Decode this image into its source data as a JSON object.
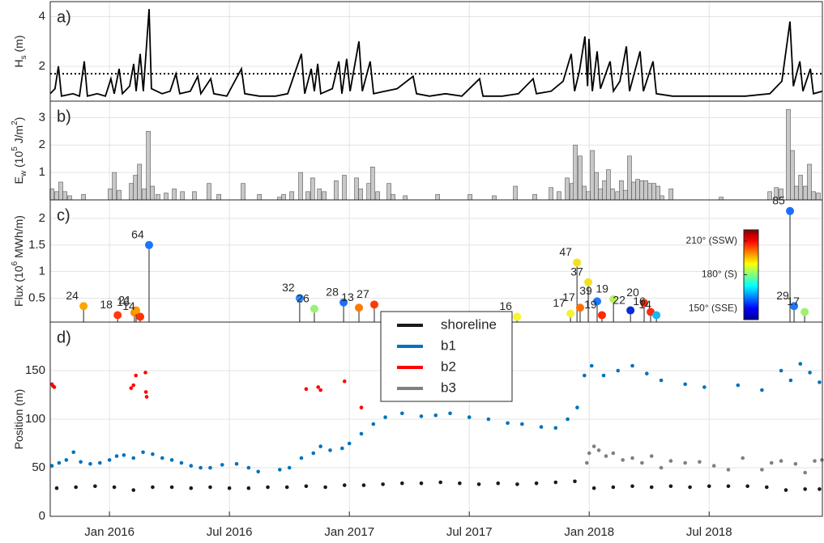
{
  "chart_data": [
    {
      "type": "line",
      "label": "a)",
      "ylabel": [
        "H",
        {
          "sub": "s"
        },
        " (m)"
      ],
      "color": "#000000",
      "ylim": [
        0.6,
        4.6
      ],
      "yticks": [
        2,
        4
      ],
      "grid": true,
      "threshold": 1.7,
      "x": [
        2015.753,
        2015.773,
        2015.787,
        2015.8,
        2015.848,
        2015.875,
        2015.895,
        2015.908,
        2015.949,
        2015.983,
        2016.006,
        2016.02,
        2016.04,
        2016.054,
        2016.084,
        2016.101,
        2016.111,
        2016.128,
        2016.141,
        2016.165,
        2016.175,
        2016.219,
        2016.253,
        2016.277,
        2016.293,
        2016.337,
        2016.368,
        2016.381,
        2016.422,
        2016.435,
        2016.489,
        2016.55,
        2016.564,
        2016.625,
        2016.692,
        2016.743,
        2016.8,
        2016.814,
        2016.841,
        2016.854,
        2016.868,
        2016.881,
        2016.929,
        2016.956,
        2016.969,
        2016.989,
        2017.003,
        2017.04,
        2017.054,
        2017.087,
        2017.101,
        2017.148,
        2017.199,
        2017.266,
        2017.28,
        2017.334,
        2017.401,
        2017.469,
        2017.543,
        2017.557,
        2017.638,
        2017.705,
        2017.766,
        2017.78,
        2017.841,
        2017.891,
        2017.925,
        2017.939,
        2017.959,
        2017.982,
        2017.993,
        2017.999,
        2018.013,
        2018.033,
        2018.047,
        2018.087,
        2018.101,
        2018.128,
        2018.155,
        2018.168,
        2018.212,
        2018.226,
        2018.266,
        2018.28,
        2018.347,
        2018.449,
        2018.55,
        2018.651,
        2018.753,
        2018.803,
        2018.837,
        2018.851,
        2018.878,
        2018.891,
        2018.922,
        2018.935,
        2018.972
      ],
      "values": [
        0.9,
        1.1,
        2.0,
        0.8,
        0.9,
        0.8,
        2.2,
        0.8,
        0.9,
        0.8,
        1.5,
        0.9,
        1.9,
        0.9,
        1.2,
        2.1,
        1.0,
        2.5,
        1.0,
        4.3,
        1.1,
        0.9,
        1.0,
        1.7,
        0.9,
        1.0,
        1.6,
        0.9,
        1.5,
        0.9,
        0.8,
        1.9,
        0.9,
        0.8,
        0.8,
        0.9,
        2.5,
        0.9,
        1.9,
        1.0,
        2.1,
        0.9,
        1.1,
        2.2,
        0.9,
        2.3,
        1.0,
        3.0,
        1.0,
        2.2,
        0.9,
        1.0,
        1.1,
        1.6,
        0.9,
        0.8,
        0.9,
        0.8,
        1.5,
        0.8,
        0.8,
        0.9,
        1.5,
        0.9,
        1.0,
        1.4,
        2.5,
        1.0,
        1.8,
        3.2,
        1.2,
        3.1,
        1.0,
        2.6,
        1.1,
        2.2,
        1.0,
        1.4,
        2.8,
        1.0,
        2.6,
        1.0,
        2.2,
        0.9,
        0.8,
        0.8,
        0.8,
        0.8,
        0.9,
        1.4,
        3.8,
        1.2,
        2.2,
        1.0,
        1.9,
        0.9,
        1.0
      ]
    },
    {
      "type": "bar",
      "label": "b)",
      "ylabel": [
        "E",
        {
          "sub": "w"
        },
        " (10",
        {
          "sup": "5"
        },
        " J/m",
        {
          "sup": "2"
        },
        ")"
      ],
      "color": "#c8c8c8",
      "ylim": [
        0,
        3.6
      ],
      "yticks": [
        1,
        2,
        3
      ],
      "grid": true,
      "x": [
        2015.76,
        2015.78,
        2015.797,
        2015.814,
        2015.834,
        2015.892,
        2016.003,
        2016.02,
        2016.04,
        2016.091,
        2016.108,
        2016.125,
        2016.145,
        2016.162,
        2016.179,
        2016.202,
        2016.236,
        2016.27,
        2016.304,
        2016.354,
        2016.415,
        2016.456,
        2016.557,
        2016.625,
        2016.709,
        2016.726,
        2016.76,
        2016.797,
        2016.827,
        2016.847,
        2016.875,
        2016.895,
        2016.945,
        2016.979,
        2017.03,
        2017.047,
        2017.081,
        2017.097,
        2017.118,
        2017.165,
        2017.182,
        2017.233,
        2017.368,
        2017.503,
        2017.604,
        2017.692,
        2017.773,
        2017.841,
        2017.874,
        2017.908,
        2017.928,
        2017.942,
        2017.962,
        2017.979,
        2017.996,
        2018.013,
        2018.03,
        2018.047,
        2018.064,
        2018.08,
        2018.097,
        2018.118,
        2018.134,
        2018.151,
        2018.168,
        2018.185,
        2018.202,
        2018.219,
        2018.236,
        2018.253,
        2018.27,
        2018.287,
        2018.303,
        2018.341,
        2018.55,
        2018.753,
        2018.78,
        2018.8,
        2018.83,
        2018.847,
        2018.864,
        2018.881,
        2018.901,
        2018.918,
        2018.935,
        2018.955
      ],
      "values": [
        0.4,
        0.3,
        0.65,
        0.3,
        0.15,
        0.2,
        0.4,
        1.0,
        0.35,
        0.6,
        0.9,
        1.3,
        0.4,
        2.5,
        0.5,
        0.2,
        0.25,
        0.4,
        0.3,
        0.3,
        0.6,
        0.2,
        0.6,
        0.2,
        0.1,
        0.2,
        0.3,
        1.0,
        0.3,
        0.8,
        0.4,
        0.3,
        0.7,
        0.9,
        0.8,
        0.4,
        0.6,
        1.2,
        0.3,
        0.6,
        0.2,
        0.15,
        0.2,
        0.2,
        0.15,
        0.5,
        0.2,
        0.45,
        0.3,
        0.8,
        0.6,
        2.0,
        1.6,
        0.5,
        0.3,
        1.8,
        1.0,
        0.4,
        0.7,
        1.1,
        0.4,
        0.3,
        0.7,
        0.35,
        1.6,
        0.65,
        0.75,
        0.7,
        0.7,
        0.6,
        0.6,
        0.5,
        0.15,
        0.4,
        0.1,
        0.3,
        0.45,
        0.4,
        3.3,
        1.8,
        0.5,
        0.9,
        0.5,
        1.3,
        0.3,
        0.25
      ]
    },
    {
      "type": "stem",
      "label": "c)",
      "ylabel": [
        "Flux (10",
        {
          "sup": "6"
        },
        " MWh/m)"
      ],
      "ylim": [
        0.05,
        2.35
      ],
      "yticks": [
        0.5,
        1,
        1.5,
        2
      ],
      "grid": true,
      "x": [
        2015.892,
        2016.034,
        2016.104,
        2016.111,
        2016.128,
        2016.165,
        2016.793,
        2016.854,
        2016.976,
        2017.04,
        2017.104,
        2017.699,
        2017.922,
        2017.949,
        2017.962,
        2017.996,
        2018.033,
        2018.053,
        2018.101,
        2018.172,
        2018.229,
        2018.256,
        2018.28,
        2018.837,
        2018.854,
        2018.898
      ],
      "values": [
        0.35,
        0.18,
        0.23,
        0.27,
        0.15,
        1.5,
        0.5,
        0.3,
        0.42,
        0.32,
        0.38,
        0.15,
        0.21,
        1.17,
        0.32,
        0.8,
        0.44,
        0.18,
        0.48,
        0.27,
        0.41,
        0.24,
        0.18,
        2.14,
        0.35,
        0.24
      ],
      "labels": [
        24,
        18,
        16,
        21,
        14,
        64,
        32,
        26,
        28,
        13,
        27,
        16,
        17,
        47,
        17,
        37,
        39,
        19,
        19,
        22,
        20,
        16,
        14,
        85,
        29,
        17
      ],
      "colors": [
        "#ffa500",
        "#ff3a10",
        "#ff8c00",
        "#ff9a00",
        "#ff3300",
        "#1a75ff",
        "#2b8cff",
        "#9af07a",
        "#1a6fff",
        "#ff7a00",
        "#ff3a00",
        "#f5f52a",
        "#f2f23a",
        "#f5e020",
        "#ff7000",
        "#f5e020",
        "#1a7aff",
        "#ff2a00",
        "#b8f060",
        "#0a2cd8",
        "#ff2a00",
        "#ff2a10",
        "#19b8f0",
        "#1a6fff",
        "#1a7aff",
        "#a0f070"
      ],
      "colorbar": {
        "lim": [
          140,
          220
        ],
        "ticks": [
          {
            "value": 210,
            "label": "210° (SSW)"
          },
          {
            "value": 180,
            "label": "180° (S)"
          },
          {
            "value": 150,
            "label": "150° (SSE)"
          }
        ]
      }
    },
    {
      "type": "scatter",
      "label": "d)",
      "ylabel": [
        "Position (m)"
      ],
      "ylim": [
        0,
        200
      ],
      "yticks": [
        0,
        50,
        100,
        150
      ],
      "grid": true,
      "legend": "upper center",
      "xlim": [
        2015.753,
        2018.972
      ],
      "xticks": [
        {
          "value": 2016.0,
          "label": "Jan 2016"
        },
        {
          "value": 2016.5,
          "label": "Jul 2016"
        },
        {
          "value": 2017.0,
          "label": "Jan 2017"
        },
        {
          "value": 2017.5,
          "label": "Jul 2017"
        },
        {
          "value": 2018.0,
          "label": "Jan 2018"
        },
        {
          "value": 2018.5,
          "label": "Jul 2018"
        }
      ],
      "series": [
        {
          "name": "shoreline",
          "color": "#1a1a1a",
          "x": [
            2015.78,
            2015.86,
            2015.94,
            2016.02,
            2016.1,
            2016.18,
            2016.26,
            2016.34,
            2016.42,
            2016.5,
            2016.58,
            2016.66,
            2016.74,
            2016.82,
            2016.9,
            2016.98,
            2017.06,
            2017.14,
            2017.22,
            2017.3,
            2017.38,
            2017.46,
            2017.54,
            2017.62,
            2017.7,
            2017.78,
            2017.86,
            2017.94,
            2018.02,
            2018.1,
            2018.18,
            2018.26,
            2018.34,
            2018.42,
            2018.5,
            2018.58,
            2018.66,
            2018.74,
            2018.82,
            2018.9,
            2018.96
          ],
          "values": [
            29,
            30,
            31,
            30,
            27,
            30,
            30,
            29,
            30,
            29,
            29,
            30,
            30,
            31,
            30,
            32,
            32,
            33,
            34,
            34,
            35,
            34,
            33,
            34,
            33,
            34,
            35,
            36,
            29,
            30,
            31,
            30,
            31,
            30,
            31,
            31,
            31,
            30,
            27,
            28,
            28
          ]
        },
        {
          "name": "b1",
          "color": "#0072bd",
          "x": [
            2015.76,
            2015.79,
            2015.82,
            2015.85,
            2015.88,
            2015.92,
            2015.96,
            2016.0,
            2016.03,
            2016.06,
            2016.1,
            2016.14,
            2016.18,
            2016.22,
            2016.26,
            2016.3,
            2016.34,
            2016.38,
            2016.42,
            2016.47,
            2016.53,
            2016.58,
            2016.62,
            2016.71,
            2016.75,
            2016.8,
            2016.85,
            2016.88,
            2016.92,
            2016.97,
            2017.0,
            2017.05,
            2017.1,
            2017.15,
            2017.22,
            2017.3,
            2017.36,
            2017.42,
            2017.5,
            2017.58,
            2017.66,
            2017.72,
            2017.8,
            2017.86,
            2017.91,
            2017.95,
            2017.98,
            2018.01,
            2018.06,
            2018.12,
            2018.18,
            2018.24,
            2018.3,
            2018.4,
            2018.48,
            2018.62,
            2018.72,
            2018.8,
            2018.84,
            2018.88,
            2018.92,
            2018.96
          ],
          "values": [
            52,
            55,
            58,
            66,
            56,
            54,
            55,
            58,
            62,
            63,
            60,
            66,
            64,
            60,
            58,
            55,
            52,
            50,
            50,
            53,
            54,
            50,
            46,
            48,
            50,
            60,
            65,
            72,
            68,
            70,
            75,
            85,
            95,
            102,
            106,
            103,
            104,
            106,
            102,
            100,
            96,
            95,
            92,
            91,
            100,
            112,
            145,
            155,
            145,
            150,
            155,
            147,
            140,
            136,
            133,
            135,
            130,
            150,
            140,
            157,
            148,
            138
          ]
        },
        {
          "name": "b2",
          "color": "#ff0000",
          "x": [
            2015.76,
            2015.765,
            2015.77,
            2016.09,
            2016.1,
            2016.11,
            2016.15,
            2016.152,
            2016.155,
            2016.82,
            2016.87,
            2016.88,
            2016.98,
            2017.05
          ],
          "values": [
            136,
            134,
            133,
            132,
            135,
            145,
            148,
            128,
            123,
            131,
            133,
            130,
            139,
            112
          ]
        },
        {
          "name": "b3",
          "color": "#808080",
          "x": [
            2017.99,
            2018.0,
            2018.02,
            2018.04,
            2018.07,
            2018.1,
            2018.14,
            2018.18,
            2018.22,
            2018.26,
            2018.3,
            2018.34,
            2018.4,
            2018.46,
            2018.52,
            2018.58,
            2018.64,
            2018.72,
            2018.76,
            2018.8,
            2018.86,
            2018.9,
            2018.94,
            2018.97
          ],
          "values": [
            55,
            65,
            72,
            68,
            62,
            65,
            58,
            60,
            55,
            62,
            50,
            57,
            55,
            56,
            52,
            48,
            60,
            48,
            55,
            57,
            54,
            45,
            57,
            58
          ]
        }
      ]
    }
  ]
}
